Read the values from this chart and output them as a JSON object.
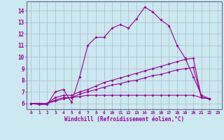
{
  "title": null,
  "xlabel": "Windchill (Refroidissement éolien,°C)",
  "background_color": "#cce8f0",
  "grid_color": "#aabbcc",
  "line_color": "#990099",
  "xlim": [
    -0.5,
    23.5
  ],
  "ylim": [
    5.5,
    14.8
  ],
  "xticks": [
    0,
    1,
    2,
    3,
    4,
    5,
    6,
    7,
    8,
    9,
    10,
    11,
    12,
    13,
    14,
    15,
    16,
    17,
    18,
    19,
    20,
    21,
    22,
    23
  ],
  "yticks": [
    6,
    7,
    8,
    9,
    10,
    11,
    12,
    13,
    14
  ],
  "series": [
    [
      6.0,
      5.9,
      5.9,
      7.0,
      7.2,
      6.1,
      8.3,
      11.0,
      11.7,
      11.7,
      12.5,
      12.8,
      12.5,
      13.3,
      14.3,
      13.9,
      13.2,
      12.7,
      11.0,
      9.9,
      8.3,
      6.7,
      6.4
    ],
    [
      6.0,
      6.0,
      6.0,
      6.5,
      6.7,
      6.7,
      7.0,
      7.2,
      7.5,
      7.8,
      8.0,
      8.2,
      8.4,
      8.6,
      8.8,
      9.0,
      9.2,
      9.4,
      9.6,
      9.8,
      9.9,
      6.5,
      6.4
    ],
    [
      6.0,
      6.0,
      6.0,
      6.3,
      6.5,
      6.5,
      6.8,
      7.0,
      7.2,
      7.4,
      7.6,
      7.7,
      7.9,
      8.0,
      8.2,
      8.4,
      8.5,
      8.7,
      8.9,
      9.0,
      9.1,
      6.5,
      6.4
    ],
    [
      6.0,
      6.0,
      6.0,
      6.2,
      6.4,
      6.5,
      6.6,
      6.7,
      6.7,
      6.7,
      6.7,
      6.7,
      6.7,
      6.7,
      6.7,
      6.7,
      6.7,
      6.7,
      6.7,
      6.7,
      6.7,
      6.5,
      6.4
    ]
  ]
}
